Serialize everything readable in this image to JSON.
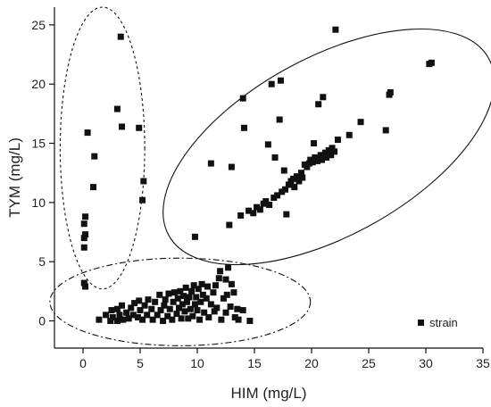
{
  "chart_data": {
    "type": "scatter",
    "title": "",
    "xlabel": "HIM (mg/L)",
    "ylabel": "TYM (mg/L)",
    "xlim": [
      -2.5,
      35
    ],
    "ylim": [
      -2.3,
      26.5
    ],
    "xticks": [
      0,
      5,
      10,
      15,
      20,
      25,
      30,
      35
    ],
    "yticks": [
      0,
      5,
      10,
      15,
      20,
      25
    ],
    "grid": false,
    "legend": {
      "position": "bottom-right",
      "entries": [
        "strain"
      ]
    },
    "marker_color": "#111111",
    "series": [
      {
        "name": "strain",
        "points": [
          [
            0.1,
            3.2
          ],
          [
            0.2,
            2.9
          ],
          [
            0.1,
            6.2
          ],
          [
            0.1,
            7.0
          ],
          [
            0.2,
            7.3
          ],
          [
            0.1,
            8.2
          ],
          [
            0.2,
            8.8
          ],
          [
            0.4,
            15.9
          ],
          [
            0.9,
            11.3
          ],
          [
            1.0,
            13.9
          ],
          [
            3.0,
            17.9
          ],
          [
            3.3,
            24.0
          ],
          [
            3.4,
            16.4
          ],
          [
            4.9,
            16.3
          ],
          [
            5.2,
            10.2
          ],
          [
            5.3,
            11.8
          ],
          [
            1.4,
            0.1
          ],
          [
            2.0,
            0.5
          ],
          [
            2.4,
            0.0
          ],
          [
            2.5,
            0.9
          ],
          [
            2.6,
            0.3
          ],
          [
            3.0,
            1.0
          ],
          [
            3.0,
            0.0
          ],
          [
            3.2,
            0.5
          ],
          [
            3.4,
            1.3
          ],
          [
            3.5,
            0.1
          ],
          [
            3.8,
            0.7
          ],
          [
            4.0,
            0.2
          ],
          [
            4.2,
            1.1
          ],
          [
            4.4,
            0.5
          ],
          [
            4.5,
            1.5
          ],
          [
            4.8,
            0.3
          ],
          [
            4.9,
            1.7
          ],
          [
            5.0,
            0.9
          ],
          [
            5.2,
            0.1
          ],
          [
            5.4,
            1.3
          ],
          [
            5.6,
            0.5
          ],
          [
            5.7,
            1.8
          ],
          [
            6.0,
            1.0
          ],
          [
            6.1,
            0.1
          ],
          [
            6.3,
            1.6
          ],
          [
            6.5,
            0.5
          ],
          [
            6.7,
            2.2
          ],
          [
            6.8,
            0.9
          ],
          [
            7.0,
            0.0
          ],
          [
            7.1,
            1.3
          ],
          [
            7.2,
            1.8
          ],
          [
            7.4,
            0.4
          ],
          [
            7.5,
            2.3
          ],
          [
            7.6,
            1.0
          ],
          [
            7.8,
            0.1
          ],
          [
            7.9,
            1.6
          ],
          [
            8.0,
            2.4
          ],
          [
            8.2,
            0.6
          ],
          [
            8.3,
            1.9
          ],
          [
            8.4,
            1.1
          ],
          [
            8.5,
            2.5
          ],
          [
            8.6,
            0.2
          ],
          [
            8.7,
            1.4
          ],
          [
            8.8,
            2.1
          ],
          [
            8.9,
            0.8
          ],
          [
            9.0,
            2.8
          ],
          [
            9.1,
            1.6
          ],
          [
            9.2,
            0.2
          ],
          [
            9.3,
            2.0
          ],
          [
            9.4,
            1.0
          ],
          [
            9.5,
            2.5
          ],
          [
            9.6,
            0.4
          ],
          [
            9.7,
            3.0
          ],
          [
            9.8,
            1.4
          ],
          [
            9.9,
            2.0
          ],
          [
            10.0,
            0.9
          ],
          [
            10.1,
            2.7
          ],
          [
            10.2,
            0.1
          ],
          [
            10.3,
            1.6
          ],
          [
            10.4,
            3.1
          ],
          [
            10.5,
            2.2
          ],
          [
            10.6,
            0.7
          ],
          [
            10.8,
            1.9
          ],
          [
            10.9,
            2.9
          ],
          [
            11.0,
            0.3
          ],
          [
            11.2,
            1.4
          ],
          [
            11.4,
            2.4
          ],
          [
            11.5,
            0.8
          ],
          [
            11.7,
            1.1
          ],
          [
            11.9,
            3.6
          ],
          [
            12.0,
            4.2
          ],
          [
            12.1,
            0.1
          ],
          [
            12.3,
            1.9
          ],
          [
            12.5,
            0.7
          ],
          [
            12.6,
            2.2
          ],
          [
            12.7,
            4.5
          ],
          [
            12.9,
            1.2
          ],
          [
            13.0,
            3.1
          ],
          [
            13.2,
            2.4
          ],
          [
            13.3,
            0.3
          ],
          [
            13.5,
            1.0
          ],
          [
            13.6,
            0.1
          ],
          [
            14.0,
            0.9
          ],
          [
            14.6,
            0.0
          ],
          [
            12.5,
            3.5
          ],
          [
            11.6,
            3.0
          ],
          [
            9.8,
            7.1
          ],
          [
            11.2,
            13.3
          ],
          [
            12.8,
            8.1
          ],
          [
            13.0,
            13.0
          ],
          [
            13.8,
            8.9
          ],
          [
            14.0,
            18.8
          ],
          [
            14.1,
            16.3
          ],
          [
            14.5,
            9.3
          ],
          [
            14.9,
            9.1
          ],
          [
            15.2,
            9.6
          ],
          [
            15.5,
            9.4
          ],
          [
            15.8,
            9.9
          ],
          [
            16.0,
            10.1
          ],
          [
            16.2,
            14.9
          ],
          [
            16.3,
            9.8
          ],
          [
            16.5,
            20.0
          ],
          [
            16.7,
            10.4
          ],
          [
            16.8,
            13.8
          ],
          [
            17.0,
            10.6
          ],
          [
            17.2,
            17.0
          ],
          [
            17.3,
            20.3
          ],
          [
            17.4,
            10.9
          ],
          [
            17.6,
            12.7
          ],
          [
            17.7,
            11.1
          ],
          [
            17.8,
            9.0
          ],
          [
            18.0,
            11.5
          ],
          [
            18.2,
            11.8
          ],
          [
            18.4,
            12.0
          ],
          [
            18.5,
            11.3
          ],
          [
            18.7,
            12.2
          ],
          [
            18.9,
            11.8
          ],
          [
            19.1,
            12.5
          ],
          [
            19.2,
            12.1
          ],
          [
            19.4,
            13.2
          ],
          [
            19.6,
            13.0
          ],
          [
            19.8,
            13.3
          ],
          [
            19.9,
            13.6
          ],
          [
            20.1,
            13.4
          ],
          [
            20.2,
            15.0
          ],
          [
            20.3,
            13.8
          ],
          [
            20.5,
            13.5
          ],
          [
            20.6,
            18.3
          ],
          [
            20.8,
            14.0
          ],
          [
            20.9,
            13.6
          ],
          [
            21.0,
            18.9
          ],
          [
            21.2,
            14.2
          ],
          [
            21.3,
            13.8
          ],
          [
            21.5,
            14.4
          ],
          [
            21.7,
            14.0
          ],
          [
            21.8,
            14.6
          ],
          [
            22.0,
            14.3
          ],
          [
            22.1,
            24.6
          ],
          [
            22.3,
            15.3
          ],
          [
            23.3,
            15.7
          ],
          [
            24.3,
            16.8
          ],
          [
            26.5,
            16.1
          ],
          [
            26.8,
            19.1
          ],
          [
            26.9,
            19.3
          ],
          [
            30.3,
            21.7
          ],
          [
            30.5,
            21.8
          ]
        ]
      }
    ],
    "annotations": [
      {
        "shape": "ellipse",
        "style": "dashed",
        "cx": 1.7,
        "cy": 14.6,
        "rx": 3.7,
        "ry": 11.9
      },
      {
        "shape": "ellipse",
        "style": "dash-dot",
        "cx": 8.5,
        "cy": 1.6,
        "rx": 11.4,
        "ry": 3.7
      },
      {
        "shape": "ellipse",
        "style": "solid",
        "cx": 21.5,
        "cy": 14.7,
        "rx": 16.0,
        "ry": 7.5,
        "angle_deg": 29
      }
    ]
  }
}
